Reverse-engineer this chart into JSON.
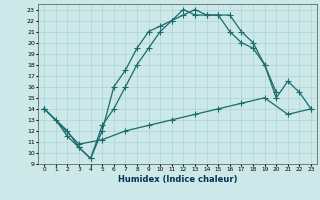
{
  "xlabel": "Humidex (Indice chaleur)",
  "bg_color": "#cce8e8",
  "grid_color": "#aad4d4",
  "line_color": "#1a6b6b",
  "xlim": [
    -0.5,
    23.5
  ],
  "ylim": [
    9,
    23.5
  ],
  "xticks": [
    0,
    1,
    2,
    3,
    4,
    5,
    6,
    7,
    8,
    9,
    10,
    11,
    12,
    13,
    14,
    15,
    16,
    17,
    18,
    19,
    20,
    21,
    22,
    23
  ],
  "yticks": [
    9,
    10,
    11,
    12,
    13,
    14,
    15,
    16,
    17,
    18,
    19,
    20,
    21,
    22,
    23
  ],
  "line1_x": [
    0,
    1,
    2,
    3,
    4,
    5,
    6,
    7,
    8,
    9,
    10,
    11,
    12,
    13,
    14,
    15,
    16,
    17,
    18,
    19,
    20
  ],
  "line1_y": [
    14,
    13,
    11.5,
    10.5,
    9.5,
    12,
    16,
    17.5,
    19.5,
    21,
    21.5,
    22,
    23,
    22.5,
    22.5,
    22.5,
    21,
    20,
    19.5,
    18,
    15.5
  ],
  "line2_x": [
    0,
    2,
    3,
    4,
    5,
    6,
    7,
    8,
    9,
    10,
    11,
    12,
    13,
    14,
    15,
    16,
    17,
    18,
    19,
    20,
    21,
    22,
    23
  ],
  "line2_y": [
    14,
    12,
    10.5,
    9.5,
    12.5,
    14,
    16,
    18,
    19.5,
    21,
    22,
    22.5,
    23,
    22.5,
    22.5,
    22.5,
    21,
    20,
    18,
    15,
    16.5,
    15.5,
    14
  ],
  "line3_x": [
    0,
    3,
    5,
    7,
    9,
    11,
    13,
    15,
    17,
    19,
    21,
    23
  ],
  "line3_y": [
    14,
    10.8,
    11.2,
    12,
    12.5,
    13,
    13.5,
    14,
    14.5,
    15,
    13.5,
    14
  ],
  "marker": "+",
  "markersize": 4,
  "markeredgewidth": 0.8,
  "linewidth": 0.9
}
